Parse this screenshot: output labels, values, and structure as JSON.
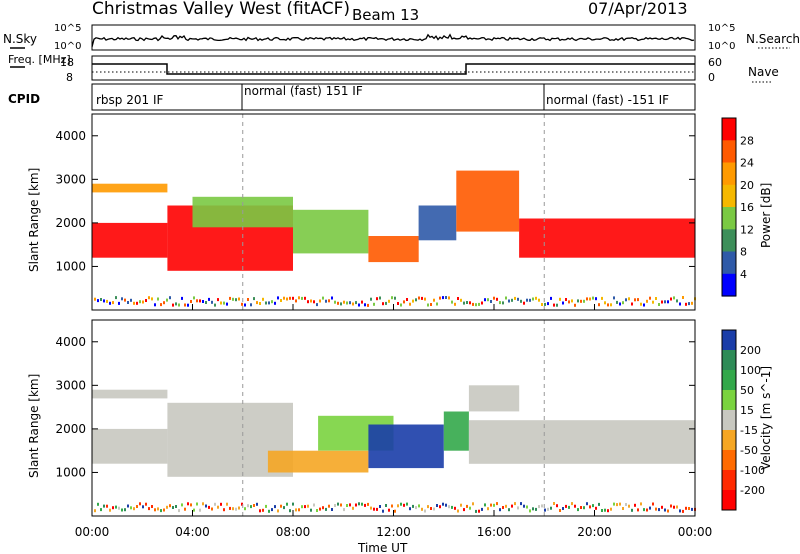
{
  "header": {
    "title": "Christmas Valley West (fitACF)",
    "beam": "Beam 13",
    "date": "07/Apr/2013"
  },
  "status": {
    "nsky_label": "N.Sky",
    "nsearch_label": "N.Search",
    "nsky_ticks": [
      "10^5",
      "10^0"
    ],
    "freq_label": "Freq. [MHz]",
    "freq_ticks": [
      "18",
      "8"
    ],
    "nave_label": "Nave",
    "nave_ticks": [
      "60",
      "0"
    ],
    "cpid_label": "CPID",
    "cpid_segments": [
      {
        "label": "rbsp 201 IF",
        "start_hour": 0
      },
      {
        "label": "normal (fast) 151 IF",
        "start_hour": 6
      },
      {
        "label": "normal (fast) -151 IF",
        "start_hour": 18
      }
    ]
  },
  "colorbars": {
    "power": {
      "label": "Power [dB]",
      "ticks": [
        "28",
        "24",
        "20",
        "16",
        "12",
        "8",
        "4"
      ],
      "colors": [
        "#ff0000",
        "#ff5a00",
        "#ff9a00",
        "#f5b800",
        "#7ac943",
        "#3d8f5a",
        "#2f5aa8",
        "#0000ff"
      ]
    },
    "velocity": {
      "label": "Velocity [m s^-1]",
      "ticks": [
        "200",
        "100",
        "50",
        "15",
        "-15",
        "-50",
        "-100",
        "-200"
      ],
      "colors": [
        "#1a3da8",
        "#2e8b57",
        "#33a84a",
        "#7ad33f",
        "#c8c8c0",
        "#f5a623",
        "#ff6a00",
        "#ff2a00",
        "#ff0000"
      ]
    }
  },
  "chart_data": [
    {
      "type": "heatmap",
      "name": "power",
      "xlabel": "Time UT",
      "ylabel": "Slant Range [km]",
      "xlim": [
        0,
        24
      ],
      "ylim": [
        0,
        4500
      ],
      "yticks": [
        "1000",
        "2000",
        "3000",
        "4000"
      ],
      "xticks": [
        "00:00",
        "04:00",
        "08:00",
        "12:00",
        "16:00",
        "20:00",
        "00:00"
      ],
      "bands": [
        {
          "t0": 0,
          "t1": 3,
          "r0": 1200,
          "r1": 2000,
          "level": 0
        },
        {
          "t0": 0,
          "t1": 3,
          "r0": 2700,
          "r1": 2900,
          "level": 2
        },
        {
          "t0": 3,
          "t1": 8,
          "r0": 900,
          "r1": 2400,
          "level": 0
        },
        {
          "t0": 4,
          "t1": 8,
          "r0": 1900,
          "r1": 2600,
          "level": 4
        },
        {
          "t0": 8,
          "t1": 11,
          "r0": 1300,
          "r1": 2300,
          "level": 4
        },
        {
          "t0": 11,
          "t1": 13,
          "r0": 1100,
          "r1": 1700,
          "level": 1
        },
        {
          "t0": 13,
          "t1": 14.5,
          "r0": 1600,
          "r1": 2400,
          "level": 6
        },
        {
          "t0": 14.5,
          "t1": 17,
          "r0": 1800,
          "r1": 3200,
          "level": 1
        },
        {
          "t0": 17,
          "t1": 24,
          "r0": 1200,
          "r1": 2100,
          "level": 0
        }
      ]
    },
    {
      "type": "heatmap",
      "name": "velocity",
      "xlabel": "Time UT",
      "ylabel": "Slant Range [km]",
      "xlim": [
        0,
        24
      ],
      "ylim": [
        0,
        4500
      ],
      "yticks": [
        "1000",
        "2000",
        "3000",
        "4000"
      ],
      "xticks": [
        "00:00",
        "04:00",
        "08:00",
        "12:00",
        "16:00",
        "20:00",
        "00:00"
      ],
      "bands": [
        {
          "t0": 0,
          "t1": 3,
          "r0": 1200,
          "r1": 2000,
          "level": 4
        },
        {
          "t0": 0,
          "t1": 3,
          "r0": 2700,
          "r1": 2900,
          "level": 4
        },
        {
          "t0": 3,
          "t1": 8,
          "r0": 900,
          "r1": 2600,
          "level": 4
        },
        {
          "t0": 7,
          "t1": 11,
          "r0": 1000,
          "r1": 1500,
          "level": 5
        },
        {
          "t0": 9,
          "t1": 12,
          "r0": 1500,
          "r1": 2300,
          "level": 3
        },
        {
          "t0": 11,
          "t1": 14,
          "r0": 1100,
          "r1": 2100,
          "level": 0
        },
        {
          "t0": 14,
          "t1": 15,
          "r0": 1500,
          "r1": 2400,
          "level": 2
        },
        {
          "t0": 15,
          "t1": 24,
          "r0": 1200,
          "r1": 2200,
          "level": 4
        },
        {
          "t0": 15,
          "t1": 17,
          "r0": 2400,
          "r1": 3000,
          "level": 4
        }
      ]
    }
  ]
}
